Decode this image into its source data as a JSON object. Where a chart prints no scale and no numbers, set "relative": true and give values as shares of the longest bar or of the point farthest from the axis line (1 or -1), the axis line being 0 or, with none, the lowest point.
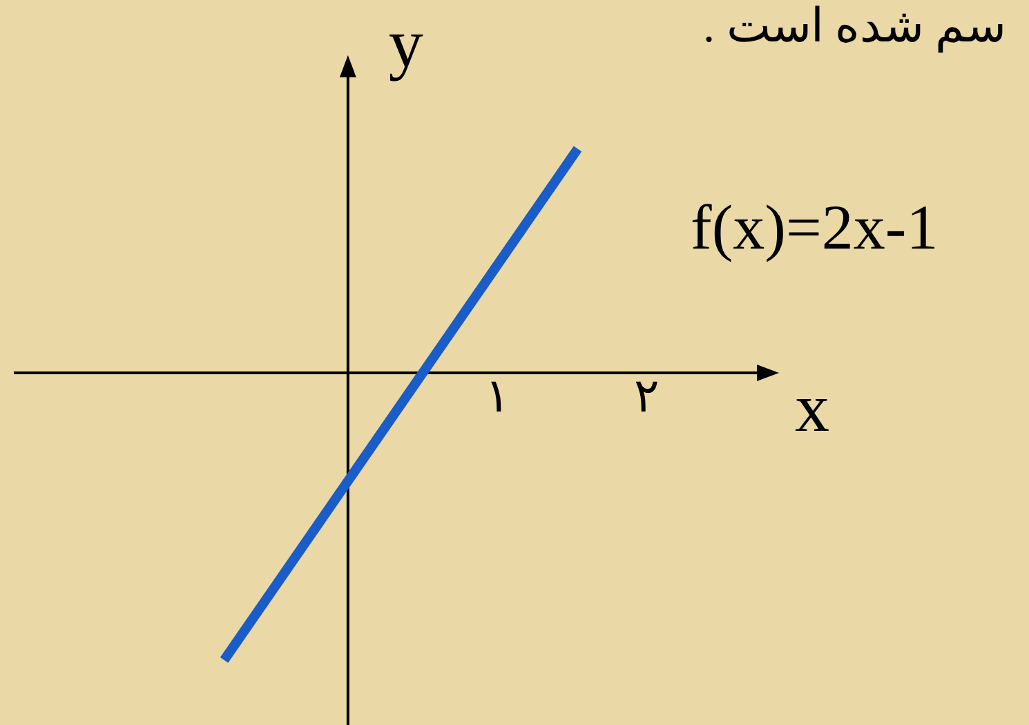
{
  "chart_data": {
    "type": "line",
    "title": "سم شده است .",
    "xlabel": "x",
    "ylabel": "y",
    "annotations": [
      "f(x)=2x-1"
    ],
    "x": [
      -0.83,
      1.54
    ],
    "relative": true,
    "series": [
      {
        "color": "#1a5cc8",
        "values": [
          -1,
          0.78
        ]
      }
    ],
    "xlim": [
      -2.24,
      2.76
    ],
    "xticks": [
      {
        "value": 1,
        "label": "١"
      },
      {
        "value": 2,
        "label": "٢"
      }
    ],
    "marker": "none",
    "line_style": "solid"
  }
}
